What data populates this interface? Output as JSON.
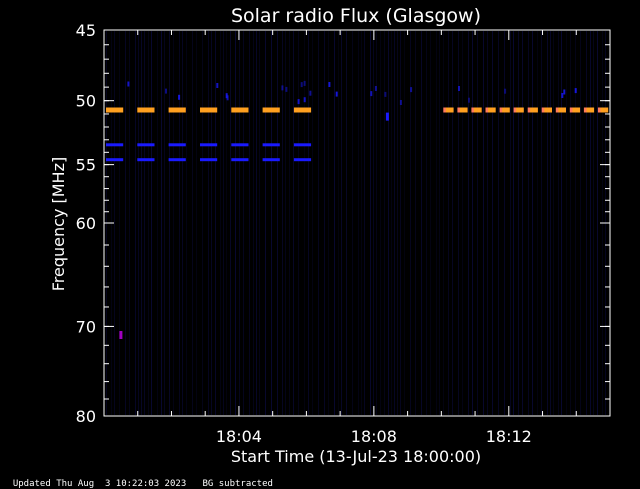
{
  "chart_data": {
    "type": "heatmap",
    "title": "Solar radio Flux (Glasgow)",
    "xlabel": "Start Time (13-Jul-23 18:00:00)",
    "ylabel": "Frequency [MHz]",
    "x_unit": "minutes after 18:00",
    "xlim": [
      0,
      15
    ],
    "ylim": [
      45,
      80
    ],
    "y_axis_inverted": true,
    "y_scale": "log",
    "x_ticks": [
      {
        "value": 4,
        "label": "18:04"
      },
      {
        "value": 8,
        "label": "18:08"
      },
      {
        "value": 12,
        "label": "18:12"
      }
    ],
    "y_ticks": [
      {
        "value": 45,
        "label": "45"
      },
      {
        "value": 50,
        "label": "50"
      },
      {
        "value": 55,
        "label": "55"
      },
      {
        "value": 60,
        "label": "60"
      },
      {
        "value": 70,
        "label": "70"
      },
      {
        "value": 80,
        "label": "80"
      }
    ],
    "colors": {
      "background": "#000000",
      "axes": "#ffffff",
      "faint_stripes": "#0a0a3a",
      "blue": "#1a1aff",
      "orange": "#ffa020",
      "salmon": "#ff7a5a",
      "magenta": "#a000c0"
    },
    "bands": [
      {
        "freq": 50.7,
        "t_start": 0.0,
        "t_end": 6.5,
        "color": "orange",
        "dashes": 7
      },
      {
        "freq": 53.4,
        "t_start": 0.0,
        "t_end": 6.5,
        "color": "blue",
        "dashes": 7
      },
      {
        "freq": 54.6,
        "t_start": 0.0,
        "t_end": 6.5,
        "color": "blue",
        "dashes": 7
      },
      {
        "freq": 50.7,
        "t_start": 10.0,
        "t_end": 15.0,
        "color": "salmon",
        "dashes": 12
      },
      {
        "freq": 50.7,
        "t_start": 10.0,
        "t_end": 15.0,
        "color": "orange",
        "dashes": 12,
        "offset": 0.18
      }
    ],
    "spots": [
      {
        "t": 0.5,
        "freq": 70.9,
        "color": "magenta"
      },
      {
        "t": 8.4,
        "freq": 51.2,
        "color": "blue"
      }
    ]
  },
  "footer": {
    "updated": "Updated Thu Aug  3 10:22:03 2023",
    "note": "BG subtracted"
  }
}
